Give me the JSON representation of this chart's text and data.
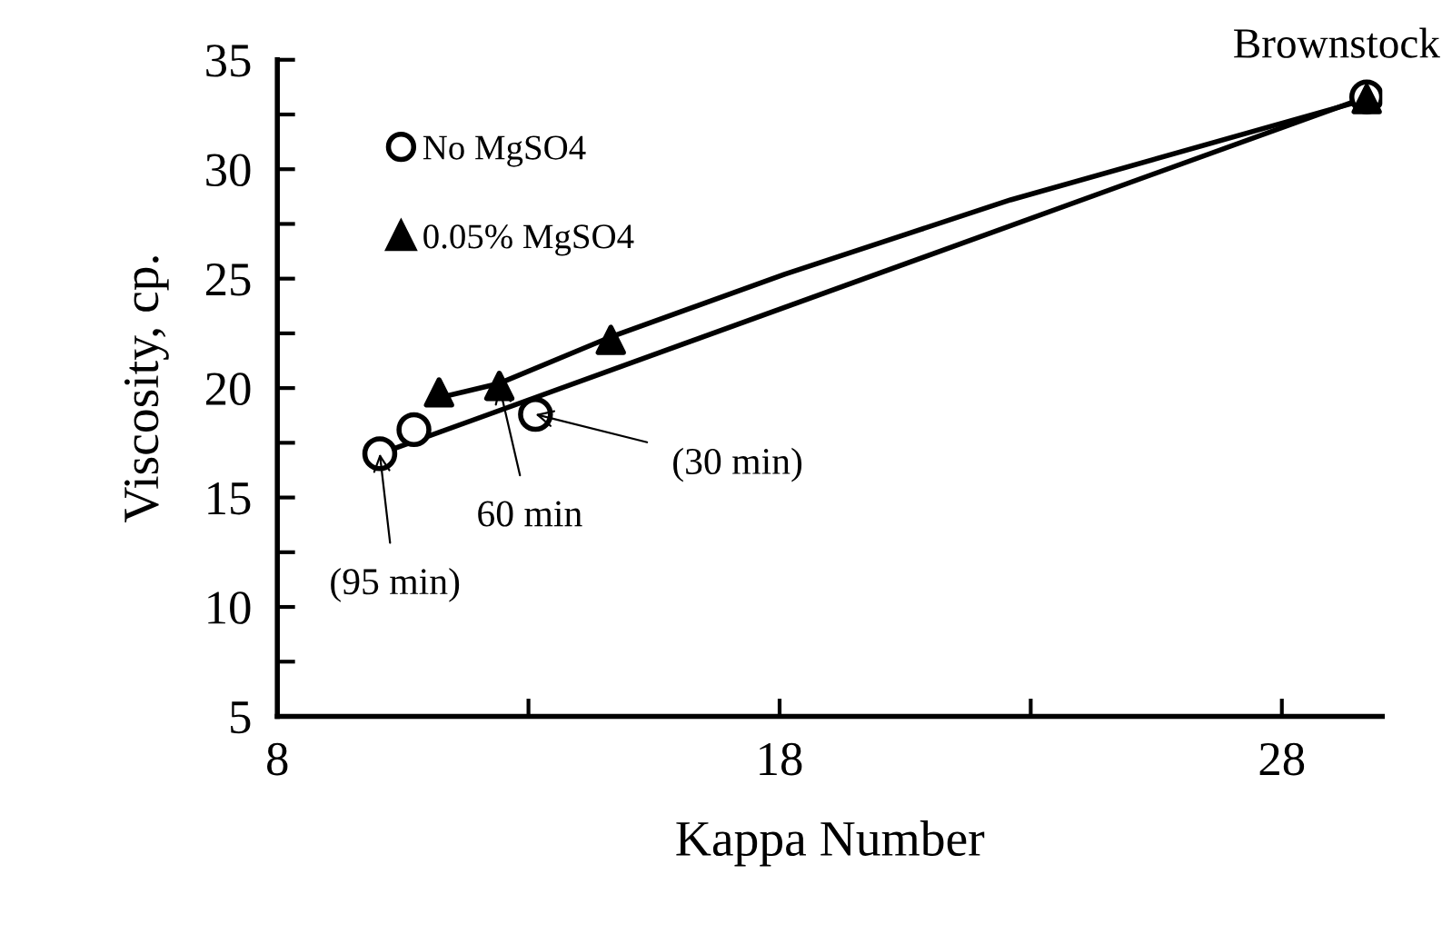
{
  "chart_data": {
    "type": "scatter",
    "xlabel": "Kappa Number",
    "ylabel": "Viscosity, cp.",
    "series": [
      {
        "name": "No MgSO4",
        "marker": "circle",
        "color": "#000000",
        "x": [
          10.04,
          10.72,
          13.14,
          29.69
        ],
        "values": [
          17.0,
          18.1,
          18.8,
          33.3
        ]
      },
      {
        "name": "0.05% MgSO4",
        "marker": "triangle",
        "color": "#000000",
        "x": [
          11.22,
          12.42,
          14.64,
          29.69
        ],
        "values": [
          19.8,
          20.1,
          22.2,
          33.2
        ]
      },
      {
        "type": "line",
        "color": "#000000",
        "x": [
          10.04,
          29.69
        ],
        "values": [
          17.0,
          33.3
        ]
      },
      {
        "type": "line",
        "color": "#000000",
        "x": [
          11.3,
          12.4,
          14.6,
          18.1,
          22.6,
          29.7
        ],
        "values": [
          19.6,
          20.2,
          22.3,
          25.2,
          28.6,
          33.2
        ]
      }
    ],
    "annotations": [
      {
        "text": "Brownstock",
        "x": 29.69,
        "y": 33.3
      },
      {
        "text": "(30 min)",
        "x": 13.14,
        "y": 18.8
      },
      {
        "text": "60 min",
        "x": 12.42,
        "y": 20.1
      },
      {
        "text": "(95 min)",
        "x": 10.04,
        "y": 17.0
      }
    ],
    "xlim": [
      8,
      30
    ],
    "xticks": [
      8,
      {
        "value": 13,
        "label": null
      },
      18,
      {
        "value": 23,
        "label": null
      },
      28
    ],
    "ylim": [
      5,
      35
    ],
    "yticks": [
      5,
      {
        "value": 7.5,
        "label": null
      },
      10,
      {
        "value": 12.5,
        "label": null
      },
      15,
      {
        "value": 17.5,
        "label": null
      },
      20,
      {
        "value": 22.5,
        "label": null
      },
      25,
      {
        "value": 27.5,
        "label": null
      },
      30,
      {
        "value": 32.5,
        "label": null
      },
      35
    ],
    "grid": false,
    "legend": "top left"
  }
}
